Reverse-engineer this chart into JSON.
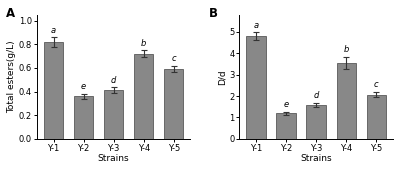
{
  "panel_A": {
    "title": "A",
    "categories": [
      "Y-1",
      "Y-2",
      "Y-3",
      "Y-4",
      "Y-5"
    ],
    "values": [
      0.82,
      0.36,
      0.41,
      0.72,
      0.59
    ],
    "errors": [
      0.04,
      0.02,
      0.025,
      0.03,
      0.025
    ],
    "letters": [
      "a",
      "e",
      "d",
      "b",
      "c"
    ],
    "ylabel": "Total esters(g/L)",
    "xlabel": "Strains",
    "ylim": [
      0.0,
      1.05
    ],
    "yticks": [
      0.0,
      0.2,
      0.4,
      0.6,
      0.8,
      1.0
    ]
  },
  "panel_B": {
    "title": "B",
    "categories": [
      "Y-1",
      "Y-2",
      "Y-3",
      "Y-4",
      "Y-5"
    ],
    "values": [
      4.8,
      1.2,
      1.6,
      3.55,
      2.07
    ],
    "errors": [
      0.18,
      0.07,
      0.09,
      0.28,
      0.12
    ],
    "letters": [
      "a",
      "e",
      "d",
      "b",
      "c"
    ],
    "ylabel": "D/d",
    "xlabel": "Strains",
    "ylim": [
      0.0,
      5.8
    ],
    "yticks": [
      0,
      1,
      2,
      3,
      4,
      5
    ]
  },
  "bar_color": "#888888",
  "bar_edge_color": "#444444",
  "bar_width": 0.65,
  "letter_fontsize": 6.0,
  "label_fontsize": 6.5,
  "tick_fontsize": 6.0,
  "title_fontsize": 8.5,
  "fig_bg": "#ffffff"
}
